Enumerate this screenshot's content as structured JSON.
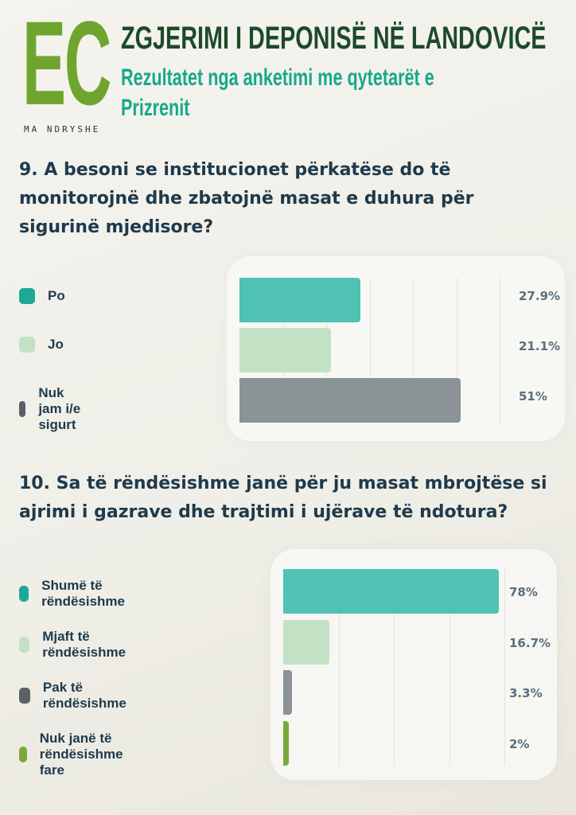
{
  "header": {
    "logo_letters": "EC",
    "logo_tagline": "MA NDRYSHE",
    "title": "ZGJERIMI I DEPONISË NË LANDOVICË",
    "subtitle_line1": "Rezultatet nga anketimi me qytetarët e",
    "subtitle_line2": "Prizrenit"
  },
  "colors": {
    "teal": "#4fc2b4",
    "light_green": "#c3e1c5",
    "gray": "#8b9396",
    "green": "#7aa93a",
    "swatch_teal": "#1fa896",
    "swatch_gray": "#5b6166"
  },
  "chart_data": [
    {
      "type": "bar",
      "orientation": "horizontal",
      "title": "9. A besoni se institucionet përkatëse do të monitorojnë dhe zbatojnë masat e duhura për sigurinë mjedisore?",
      "title_lines": [
        "9. A besoni se institucionet përkatëse do të",
        "monitorojnë dhe zbatojnë masat e duhura për",
        "sigurinë mjedisore?"
      ],
      "categories": [
        "Po",
        "Jo",
        "Nuk jam i/e sigurt"
      ],
      "values": [
        27.9,
        21.1,
        51
      ],
      "labels": [
        "27.9%",
        "21.1%",
        "51%"
      ],
      "colors": [
        "#4fc2b4",
        "#c3e1c5",
        "#8b9396"
      ],
      "swatch_colors": [
        "#1fa896",
        "#c3e1c5",
        "#5b6166"
      ],
      "xlim": [
        0,
        60
      ],
      "grid": true,
      "legend": "left"
    },
    {
      "type": "bar",
      "orientation": "horizontal",
      "title": "10. Sa të rëndësishme janë për ju masat mbrojtëse si ajrimi i gazrave dhe trajtimi i ujërave të ndotura?",
      "title_lines": [
        "10. Sa të rëndësishme janë për ju masat mbrojtëse si",
        "ajrimi i gazrave dhe trajtimi i ujërave të ndotura?"
      ],
      "categories": [
        "Shumë të rëndësishme",
        "Mjaft të rëndësishme",
        "Pak të rëndësishme",
        "Nuk janë të rëndësishme fare"
      ],
      "values": [
        78,
        16.7,
        3.3,
        2
      ],
      "labels": [
        "78%",
        "16.7%",
        "3.3%",
        "2%"
      ],
      "colors": [
        "#4fc2b4",
        "#c3e1c5",
        "#8b9396",
        "#7aa93a"
      ],
      "swatch_colors": [
        "#1fa896",
        "#c3e1c5",
        "#5b6166",
        "#7aa93a"
      ],
      "xlim": [
        0,
        100
      ],
      "grid": true,
      "legend": "left"
    }
  ]
}
